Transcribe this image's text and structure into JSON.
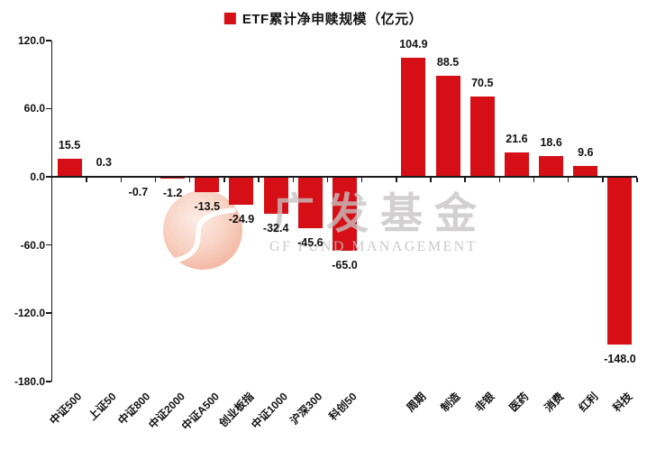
{
  "legend": {
    "label": "ETF累计净申赎规模（亿元）",
    "marker_color": "#d50f15"
  },
  "chart_data": {
    "type": "bar",
    "title": "ETF累计净申赎规模（亿元）",
    "bar_color": "#d50f15",
    "ylim": [
      -180,
      120
    ],
    "ytick_interval": 60,
    "ytick_labels": [
      "120.0",
      "60.0",
      "0.0",
      "-60.0",
      "-120.0",
      "-180.0"
    ],
    "grid": false,
    "legend_position": "top-center",
    "groups": [
      {
        "categories": [
          "中证500",
          "上证50",
          "中证800",
          "中证2000",
          "中证A500",
          "创业板指",
          "中证1000",
          "沪深300",
          "科创50"
        ],
        "values": [
          15.5,
          0.3,
          -0.7,
          -1.2,
          -13.5,
          -24.9,
          -32.4,
          -45.6,
          -65.0
        ]
      },
      {
        "categories": [
          "周期",
          "制造",
          "非银",
          "医药",
          "消费",
          "红利",
          "科技"
        ],
        "values": [
          104.9,
          88.5,
          70.5,
          21.6,
          18.6,
          9.6,
          -148.0
        ]
      }
    ]
  },
  "watermark": {
    "text": "广发基金",
    "subtext": "GF FUND MANAGEMENT"
  }
}
